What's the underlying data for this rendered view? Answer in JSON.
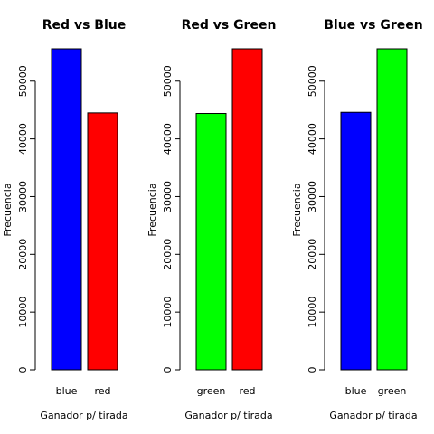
{
  "chart_data": [
    {
      "type": "bar",
      "title": "Red vs Blue",
      "xlabel": "Ganador p/ tirada",
      "ylabel": "Frecuencia",
      "categories": [
        "blue",
        "red"
      ],
      "values": [
        55600,
        44500
      ],
      "colors": [
        "#0000ff",
        "#ff0000"
      ],
      "yticks": [
        0,
        10000,
        20000,
        30000,
        40000,
        50000
      ],
      "ylim": [
        0,
        55600
      ],
      "grid": false
    },
    {
      "type": "bar",
      "title": "Red vs Green",
      "xlabel": "Ganador p/ tirada",
      "ylabel": "Frecuencia",
      "categories": [
        "green",
        "red"
      ],
      "values": [
        44400,
        55600
      ],
      "colors": [
        "#00ff00",
        "#ff0000"
      ],
      "yticks": [
        0,
        10000,
        20000,
        30000,
        40000,
        50000
      ],
      "ylim": [
        0,
        55600
      ],
      "grid": false
    },
    {
      "type": "bar",
      "title": "Blue vs Green",
      "xlabel": "Ganador p/ tirada",
      "ylabel": "Frecuencia",
      "categories": [
        "blue",
        "green"
      ],
      "values": [
        44600,
        55600
      ],
      "colors": [
        "#0000ff",
        "#00ff00"
      ],
      "yticks": [
        0,
        10000,
        20000,
        30000,
        40000,
        50000
      ],
      "ylim": [
        0,
        55600
      ],
      "grid": false
    }
  ]
}
